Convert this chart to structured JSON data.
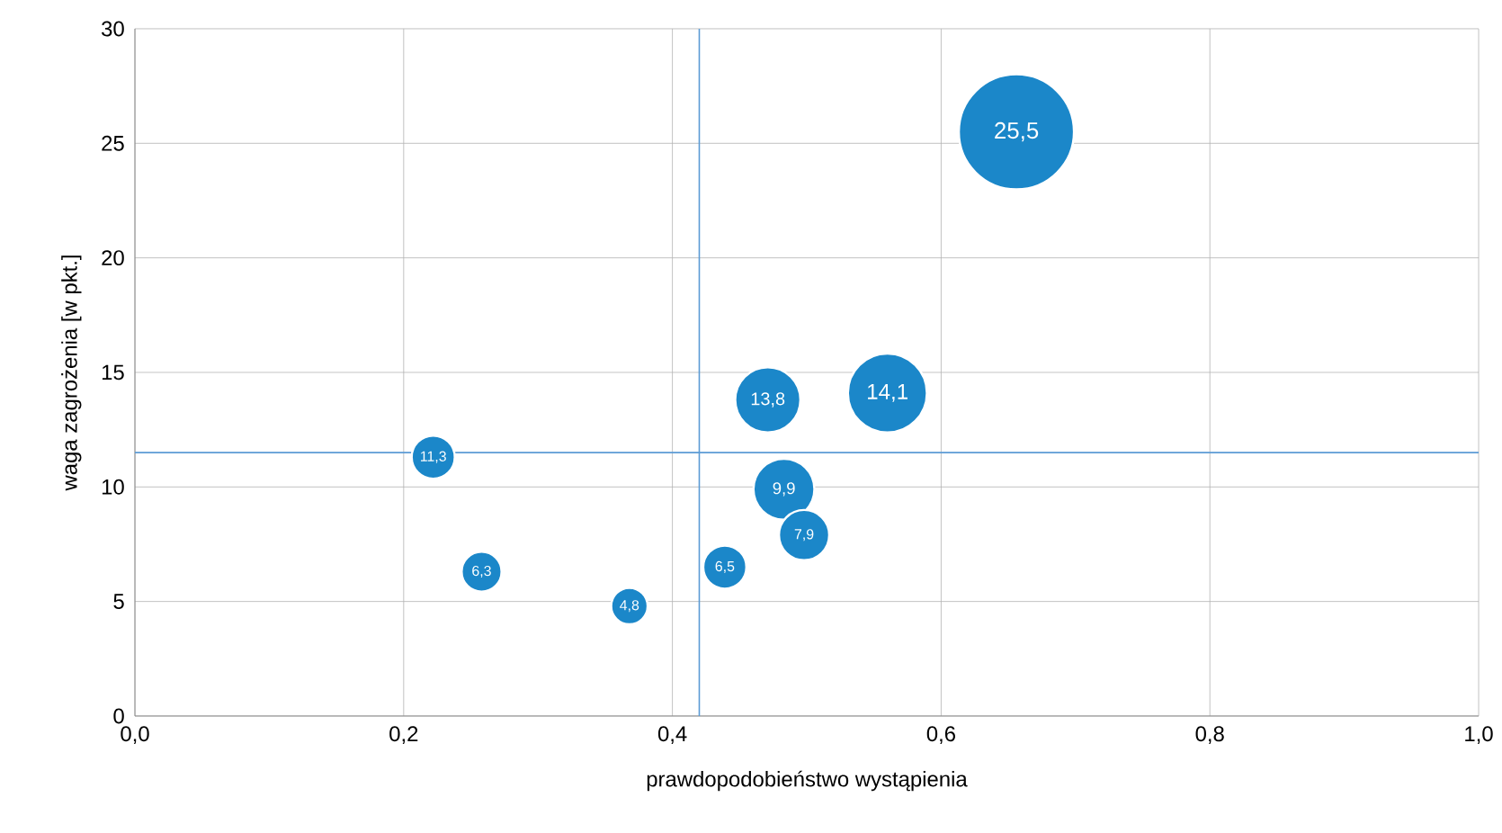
{
  "chart_data": {
    "type": "bubble",
    "xlabel": "prawdopodobieństwo wystąpienia",
    "ylabel": "waga zagrożenia [w pkt.]",
    "x": [
      0.656,
      0.56,
      0.471,
      0.483,
      0.498,
      0.439,
      0.368,
      0.258,
      0.222
    ],
    "values": [
      25.5,
      14.1,
      13.8,
      9.9,
      7.9,
      6.5,
      4.8,
      6.3,
      11.3
    ],
    "value_labels": [
      "25,5",
      "14,1",
      "13,8",
      "9,9",
      "7,9",
      "6,5",
      "4,8",
      "6,3",
      "11,3"
    ],
    "sizes": [
      1,
      0.47,
      0.32,
      0.28,
      0.19,
      0.14,
      0.1,
      0.12,
      0.14
    ],
    "color": "#1b87c9",
    "marker": "circle",
    "xlim": [
      0,
      1
    ],
    "ylim": [
      0,
      30
    ],
    "xticks": [
      {
        "value": 0,
        "label": "0,0"
      },
      {
        "value": 0.2,
        "label": "0,2"
      },
      {
        "value": 0.4,
        "label": "0,4"
      },
      {
        "value": 0.6,
        "label": "0,6"
      },
      {
        "value": 0.8,
        "label": "0,8"
      },
      {
        "value": 1,
        "label": "1,0"
      }
    ],
    "yticks": [
      0,
      5,
      10,
      15,
      20,
      25,
      30
    ],
    "grid": true,
    "ref_lines": [
      {
        "axis": "y",
        "value": 11.5,
        "color": "#5b9bd5"
      },
      {
        "axis": "x",
        "value": 0.42,
        "color": "#5b9bd5"
      }
    ]
  }
}
